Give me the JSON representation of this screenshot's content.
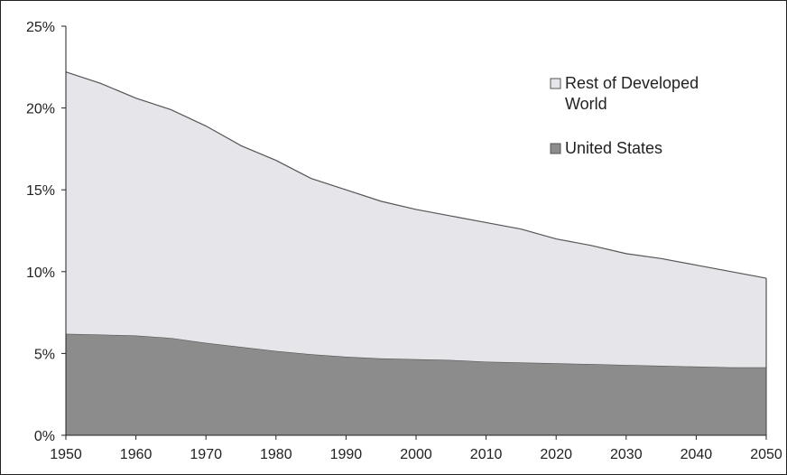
{
  "chart_data": {
    "type": "area",
    "stacked": true,
    "title": "",
    "xlabel": "",
    "ylabel": "",
    "x": [
      1950,
      1955,
      1960,
      1965,
      1970,
      1975,
      1980,
      1985,
      1990,
      1995,
      2000,
      2005,
      2010,
      2015,
      2020,
      2025,
      2030,
      2035,
      2040,
      2045,
      2050
    ],
    "series": [
      {
        "name": "United States",
        "color": "#8c8c8c",
        "values": [
          6.2,
          6.15,
          6.1,
          5.95,
          5.65,
          5.4,
          5.15,
          4.95,
          4.8,
          4.7,
          4.65,
          4.6,
          4.5,
          4.45,
          4.4,
          4.35,
          4.3,
          4.25,
          4.2,
          4.15,
          4.15
        ]
      },
      {
        "name": "Rest of Developed World",
        "color": "#e6e5ea",
        "values": [
          16.0,
          15.35,
          14.5,
          13.95,
          13.25,
          12.3,
          11.65,
          10.75,
          10.2,
          9.6,
          9.15,
          8.8,
          8.5,
          8.15,
          7.6,
          7.25,
          6.8,
          6.55,
          6.2,
          5.85,
          5.45
        ]
      }
    ],
    "stack_totals": [
      22.2,
      21.5,
      20.6,
      19.9,
      18.9,
      17.7,
      16.8,
      15.7,
      15.0,
      14.3,
      13.8,
      13.4,
      13.0,
      12.6,
      12.0,
      11.6,
      11.1,
      10.8,
      10.4,
      10.0,
      9.6
    ],
    "xlim": [
      1950,
      2050
    ],
    "ylim": [
      0,
      25
    ],
    "x_ticks": [
      "1950",
      "1960",
      "1970",
      "1980",
      "1990",
      "2000",
      "2010",
      "2020",
      "2030",
      "2040",
      "2050"
    ],
    "y_ticks": [
      "0%",
      "5%",
      "10%",
      "15%",
      "20%",
      "25%"
    ],
    "grid": false,
    "legend": {
      "placement": "top-right",
      "entries": [
        {
          "label_lines": [
            "Rest of Developed",
            "World"
          ],
          "series": "Rest of Developed World",
          "swatch_color": "#e6e5ea"
        },
        {
          "label_lines": [
            "United States"
          ],
          "series": "United States",
          "swatch_color": "#8c8c8c"
        }
      ]
    },
    "colors": {
      "axis": "#222222",
      "outline": "#555555"
    }
  }
}
